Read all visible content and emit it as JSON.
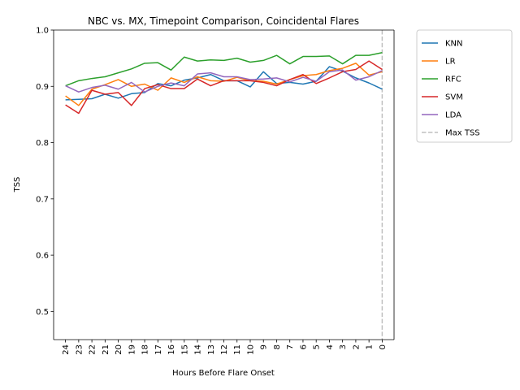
{
  "chart_data": {
    "type": "line",
    "title": "NBC vs. MX, Timepoint Comparison, Coincidental Flares",
    "xlabel": "Hours Before Flare Onset",
    "ylabel": "TSS",
    "x": [
      24,
      23,
      22,
      21,
      20,
      19,
      18,
      17,
      16,
      15,
      14,
      13,
      12,
      11,
      10,
      9,
      8,
      7,
      6,
      5,
      4,
      3,
      2,
      1,
      0
    ],
    "xlim": [
      24.9,
      -0.9
    ],
    "ylim": [
      0.45,
      1.0
    ],
    "yticks": [
      0.5,
      0.6,
      0.7,
      0.8,
      0.9,
      1.0
    ],
    "ytick_labels": [
      "0.5",
      "0.6",
      "0.7",
      "0.8",
      "0.9",
      "1.0"
    ],
    "xtick_labels": [
      "24",
      "23",
      "22",
      "21",
      "20",
      "19",
      "18",
      "17",
      "16",
      "15",
      "14",
      "13",
      "12",
      "11",
      "10",
      "9",
      "8",
      "7",
      "6",
      "5",
      "4",
      "3",
      "2",
      "1",
      "0"
    ],
    "grid": false,
    "legend_position": "outside-top-right",
    "series": [
      {
        "name": "KNN",
        "color": "#1f77b4",
        "values": [
          0.876,
          0.877,
          0.878,
          0.886,
          0.879,
          0.887,
          0.889,
          0.905,
          0.901,
          0.911,
          0.915,
          0.921,
          0.91,
          0.91,
          0.899,
          0.926,
          0.905,
          0.907,
          0.904,
          0.909,
          0.935,
          0.927,
          0.915,
          0.906,
          0.895
        ]
      },
      {
        "name": "LR",
        "color": "#ff7f0e",
        "values": [
          0.883,
          0.866,
          0.895,
          0.903,
          0.912,
          0.9,
          0.904,
          0.893,
          0.915,
          0.907,
          0.917,
          0.91,
          0.909,
          0.916,
          0.91,
          0.909,
          0.904,
          0.912,
          0.919,
          0.921,
          0.928,
          0.932,
          0.941,
          0.92,
          0.926
        ]
      },
      {
        "name": "RFC",
        "color": "#2ca02c",
        "values": [
          0.901,
          0.91,
          0.914,
          0.917,
          0.924,
          0.931,
          0.941,
          0.942,
          0.929,
          0.952,
          0.945,
          0.947,
          0.946,
          0.95,
          0.943,
          0.946,
          0.955,
          0.94,
          0.953,
          0.953,
          0.954,
          0.94,
          0.955,
          0.955,
          0.96
        ]
      },
      {
        "name": "SVM",
        "color": "#d62728",
        "values": [
          0.867,
          0.852,
          0.893,
          0.886,
          0.889,
          0.866,
          0.896,
          0.903,
          0.896,
          0.896,
          0.913,
          0.901,
          0.91,
          0.91,
          0.91,
          0.907,
          0.901,
          0.912,
          0.921,
          0.905,
          0.915,
          0.926,
          0.93,
          0.945,
          0.93
        ]
      },
      {
        "name": "LDA",
        "color": "#9467bd",
        "values": [
          0.901,
          0.89,
          0.898,
          0.902,
          0.895,
          0.907,
          0.89,
          0.9,
          0.906,
          0.901,
          0.922,
          0.924,
          0.917,
          0.917,
          0.912,
          0.913,
          0.915,
          0.908,
          0.916,
          0.909,
          0.926,
          0.929,
          0.911,
          0.917,
          0.928
        ]
      }
    ],
    "reference_line": {
      "name": "Max TSS",
      "x": 0,
      "color": "#c0c0c0",
      "style": "dashed"
    }
  }
}
